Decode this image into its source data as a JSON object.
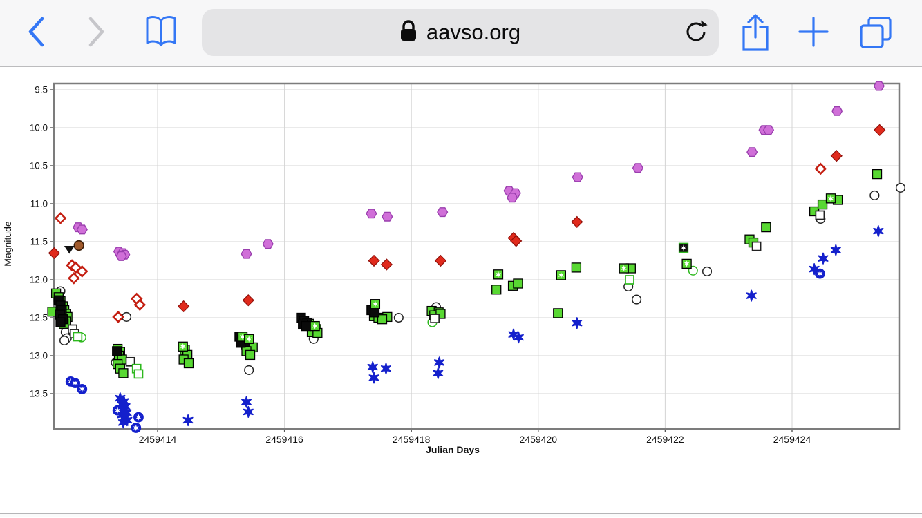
{
  "browser": {
    "url": "aavso.org",
    "icons": {
      "back": "chevron-left-icon",
      "forward": "chevron-right-icon",
      "bookmarks": "book-icon",
      "lock": "lock-icon",
      "reload": "reload-icon",
      "share": "share-icon",
      "new_tab": "plus-icon",
      "tabs": "tabs-icon"
    },
    "colors": {
      "accent_blue": "#3477f5",
      "disabled_gray": "#c6c6ca",
      "address_pill": "#e4e4e6",
      "toolbar_bg": "#f7f7f8",
      "url_text": "#0b0b0c"
    }
  },
  "chart_data": {
    "type": "scatter",
    "title": "",
    "xlabel": "Julian Days",
    "ylabel": "Magnitude",
    "x_ticks": [
      2459414,
      2459416,
      2459418,
      2459420,
      2459422,
      2459424
    ],
    "y_ticks": [
      9.5,
      10.0,
      10.5,
      11.0,
      11.5,
      12.0,
      12.5,
      13.0,
      13.5
    ],
    "xlim": [
      2459412.37,
      2459425.69
    ],
    "ylim": [
      9.42,
      13.96
    ],
    "y_inverted": true,
    "grid": true,
    "grid_color": "#d4d4d4",
    "border_color": "#7c7c7c",
    "series": [
      {
        "name": "visual-open-circles",
        "marker": "open-circle",
        "fill": "#ffffff",
        "stroke": "#222222",
        "points": [
          [
            2459412.47,
            12.15
          ],
          [
            2459412.55,
            12.69
          ],
          [
            2459412.57,
            12.77
          ],
          [
            2459412.53,
            12.8
          ],
          [
            2459413.51,
            12.49
          ],
          [
            2459413.34,
            13.09
          ],
          [
            2459415.44,
            13.19
          ],
          [
            2459416.46,
            12.78
          ],
          [
            2459417.8,
            12.5
          ],
          [
            2459418.39,
            12.36
          ],
          [
            2459421.42,
            12.09
          ],
          [
            2459421.55,
            12.26
          ],
          [
            2459422.66,
            11.89
          ],
          [
            2459424.45,
            11.2
          ],
          [
            2459425.3,
            10.89
          ],
          [
            2459425.71,
            10.79
          ]
        ]
      },
      {
        "name": "open-green-circles",
        "marker": "open-circle",
        "fill": "#ffffff",
        "stroke": "#2db81d",
        "points": [
          [
            2459412.8,
            12.76
          ],
          [
            2459418.33,
            12.56
          ],
          [
            2459422.44,
            11.88
          ]
        ]
      },
      {
        "name": "v-band-green-squares",
        "marker": "square",
        "fill": "#58d832",
        "stroke": "#000000",
        "points": [
          [
            2459412.4,
            12.18
          ],
          [
            2459412.44,
            12.23
          ],
          [
            2459412.47,
            12.28
          ],
          [
            2459412.51,
            12.35
          ],
          [
            2459412.53,
            12.4
          ],
          [
            2459412.56,
            12.45
          ],
          [
            2459412.58,
            12.49
          ],
          [
            2459412.56,
            12.55
          ],
          [
            2459412.52,
            12.58
          ],
          [
            2459412.34,
            12.42
          ],
          [
            2459413.37,
            12.91
          ],
          [
            2459413.41,
            12.95
          ],
          [
            2459413.39,
            13.0
          ],
          [
            2459413.44,
            13.05
          ],
          [
            2459413.37,
            13.11
          ],
          [
            2459413.41,
            13.17
          ],
          [
            2459413.46,
            13.23
          ],
          [
            2459414.43,
            12.92
          ],
          [
            2459414.47,
            12.99
          ],
          [
            2459414.41,
            13.05
          ],
          [
            2459414.49,
            13.1
          ],
          [
            2459415.43,
            12.79
          ],
          [
            2459415.39,
            12.86
          ],
          [
            2459415.5,
            12.89
          ],
          [
            2459415.4,
            12.94
          ],
          [
            2459415.46,
            12.99
          ],
          [
            2459416.39,
            12.58
          ],
          [
            2459416.46,
            12.62
          ],
          [
            2459416.5,
            12.65
          ],
          [
            2459416.43,
            12.69
          ],
          [
            2459416.52,
            12.7
          ],
          [
            2459417.41,
            12.48
          ],
          [
            2459417.48,
            12.5
          ],
          [
            2459417.62,
            12.49
          ],
          [
            2459417.54,
            12.52
          ],
          [
            2459418.32,
            12.41
          ],
          [
            2459418.43,
            12.43
          ],
          [
            2459418.36,
            12.47
          ],
          [
            2459418.46,
            12.45
          ],
          [
            2459419.34,
            12.13
          ],
          [
            2459419.6,
            12.08
          ],
          [
            2459419.68,
            12.05
          ],
          [
            2459420.6,
            11.84
          ],
          [
            2459420.31,
            12.44
          ],
          [
            2459421.46,
            11.85
          ],
          [
            2459423.33,
            11.47
          ],
          [
            2459423.39,
            11.51
          ],
          [
            2459423.59,
            11.31
          ],
          [
            2459424.35,
            11.1
          ],
          [
            2459424.48,
            11.01
          ],
          [
            2459424.72,
            10.95
          ],
          [
            2459425.34,
            10.61
          ]
        ]
      },
      {
        "name": "overlapping-dark-squares",
        "marker": "square",
        "fill": "#0a0a0a",
        "stroke": "#000000",
        "points": [
          [
            2459412.44,
            12.27
          ],
          [
            2459412.47,
            12.34
          ],
          [
            2459412.49,
            12.4
          ],
          [
            2459412.46,
            12.46
          ],
          [
            2459412.51,
            12.52
          ],
          [
            2459412.47,
            12.56
          ],
          [
            2459413.36,
            12.94
          ],
          [
            2459415.29,
            12.75
          ],
          [
            2459415.33,
            12.79
          ],
          [
            2459415.38,
            12.82
          ],
          [
            2459415.31,
            12.83
          ],
          [
            2459416.26,
            12.5
          ],
          [
            2459416.31,
            12.54
          ],
          [
            2459416.36,
            12.57
          ],
          [
            2459416.29,
            12.59
          ],
          [
            2459416.34,
            12.61
          ],
          [
            2459417.37,
            12.4
          ],
          [
            2459417.42,
            12.43
          ]
        ]
      },
      {
        "name": "flagged-green-squares",
        "marker": "square-star",
        "fill": "#58d832",
        "stroke": "#000000",
        "points": [
          [
            2459414.4,
            12.88
          ],
          [
            2459415.34,
            12.75
          ],
          [
            2459415.44,
            12.78
          ],
          [
            2459416.48,
            12.61
          ],
          [
            2459417.43,
            12.32
          ],
          [
            2459419.37,
            11.93
          ],
          [
            2459420.36,
            11.94
          ],
          [
            2459421.35,
            11.85
          ],
          [
            2459422.34,
            11.79
          ],
          [
            2459424.61,
            10.93
          ]
        ]
      },
      {
        "name": "flagged-dark-square",
        "marker": "square-star",
        "fill": "#111111",
        "stroke": "#2db81d",
        "points": [
          [
            2459422.29,
            11.58
          ]
        ]
      },
      {
        "name": "open-black-squares",
        "marker": "open-square",
        "fill": "#ffffff",
        "stroke": "#222222",
        "points": [
          [
            2459412.66,
            12.65
          ],
          [
            2459412.69,
            12.71
          ],
          [
            2459413.57,
            13.08
          ],
          [
            2459418.37,
            12.51
          ],
          [
            2459423.44,
            11.56
          ],
          [
            2459424.44,
            11.15
          ]
        ]
      },
      {
        "name": "open-green-squares",
        "marker": "open-square",
        "fill": "#ffffff",
        "stroke": "#2db81d",
        "points": [
          [
            2459412.74,
            12.75
          ],
          [
            2459413.67,
            13.17
          ],
          [
            2459413.7,
            13.24
          ],
          [
            2459421.44,
            12.0
          ]
        ]
      },
      {
        "name": "brown-circle",
        "marker": "circle",
        "fill": "#a05a2c",
        "stroke": "#3a1d08",
        "points": [
          [
            2459412.76,
            11.55
          ]
        ]
      },
      {
        "name": "fainter-than-marker",
        "marker": "triangle-down",
        "fill": "#111111",
        "stroke": "#111111",
        "points": [
          [
            2459412.61,
            11.6
          ]
        ]
      },
      {
        "name": "red-filled-diamonds",
        "marker": "diamond",
        "fill": "#e02a1c",
        "stroke": "#8f100a",
        "points": [
          [
            2459412.37,
            11.65
          ],
          [
            2459414.41,
            12.35
          ],
          [
            2459415.43,
            12.27
          ],
          [
            2459417.41,
            11.75
          ],
          [
            2459417.61,
            11.8
          ],
          [
            2459418.46,
            11.75
          ],
          [
            2459419.61,
            11.45
          ],
          [
            2459419.65,
            11.49
          ],
          [
            2459420.61,
            11.24
          ],
          [
            2459424.7,
            10.37
          ],
          [
            2459425.38,
            10.03
          ]
        ]
      },
      {
        "name": "red-open-diamonds",
        "marker": "open-diamond",
        "fill": "#ffffff",
        "stroke": "#c41f12",
        "points": [
          [
            2459412.47,
            11.19
          ],
          [
            2459412.65,
            11.81
          ],
          [
            2459412.71,
            11.84
          ],
          [
            2459412.81,
            11.89
          ],
          [
            2459412.68,
            11.98
          ],
          [
            2459413.67,
            12.25
          ],
          [
            2459413.72,
            12.33
          ],
          [
            2459413.38,
            12.49
          ],
          [
            2459424.45,
            10.54
          ]
        ]
      },
      {
        "name": "violet-circles",
        "marker": "hexagon",
        "fill": "#d06fd8",
        "stroke": "#9a3fae",
        "points": [
          [
            2459412.75,
            11.31
          ],
          [
            2459412.81,
            11.34
          ],
          [
            2459413.39,
            11.63
          ],
          [
            2459413.45,
            11.65
          ],
          [
            2459413.48,
            11.67
          ],
          [
            2459413.43,
            11.69
          ],
          [
            2459415.4,
            11.66
          ],
          [
            2459415.74,
            11.53
          ],
          [
            2459417.37,
            11.13
          ],
          [
            2459417.62,
            11.17
          ],
          [
            2459418.49,
            11.11
          ],
          [
            2459419.54,
            10.83
          ],
          [
            2459419.64,
            10.86
          ],
          [
            2459419.59,
            10.92
          ],
          [
            2459420.62,
            10.65
          ],
          [
            2459421.57,
            10.53
          ],
          [
            2459423.37,
            10.32
          ],
          [
            2459423.56,
            10.03
          ],
          [
            2459423.63,
            10.03
          ],
          [
            2459424.71,
            9.78
          ],
          [
            2459425.37,
            9.45
          ]
        ]
      },
      {
        "name": "blue-stars",
        "marker": "star",
        "fill": "#1420cc",
        "stroke": "#1420cc",
        "points": [
          [
            2459413.41,
            13.56
          ],
          [
            2459413.47,
            13.6
          ],
          [
            2459413.44,
            13.64
          ],
          [
            2459413.49,
            13.67
          ],
          [
            2459413.45,
            13.71
          ],
          [
            2459413.51,
            13.75
          ],
          [
            2459413.44,
            13.78
          ],
          [
            2459413.48,
            13.82
          ],
          [
            2459413.52,
            13.85
          ],
          [
            2459413.46,
            13.88
          ],
          [
            2459414.48,
            13.85
          ],
          [
            2459415.4,
            13.61
          ],
          [
            2459415.43,
            13.74
          ],
          [
            2459417.39,
            13.15
          ],
          [
            2459417.6,
            13.17
          ],
          [
            2459417.41,
            13.29
          ],
          [
            2459418.44,
            13.09
          ],
          [
            2459418.42,
            13.23
          ],
          [
            2459419.61,
            12.72
          ],
          [
            2459419.69,
            12.76
          ],
          [
            2459420.61,
            12.57
          ],
          [
            2459423.36,
            12.21
          ],
          [
            2459424.69,
            11.61
          ],
          [
            2459424.49,
            11.72
          ],
          [
            2459424.35,
            11.86
          ],
          [
            2459425.36,
            11.36
          ]
        ]
      },
      {
        "name": "blue-circled-stars",
        "marker": "circle-star",
        "fill": "#1420cc",
        "stroke": "#1420cc",
        "points": [
          [
            2459412.63,
            13.34
          ],
          [
            2459412.7,
            13.36
          ],
          [
            2459412.81,
            13.44
          ],
          [
            2459413.37,
            13.72
          ],
          [
            2459413.7,
            13.81
          ],
          [
            2459413.66,
            13.95
          ],
          [
            2459424.44,
            11.92
          ]
        ]
      }
    ]
  }
}
